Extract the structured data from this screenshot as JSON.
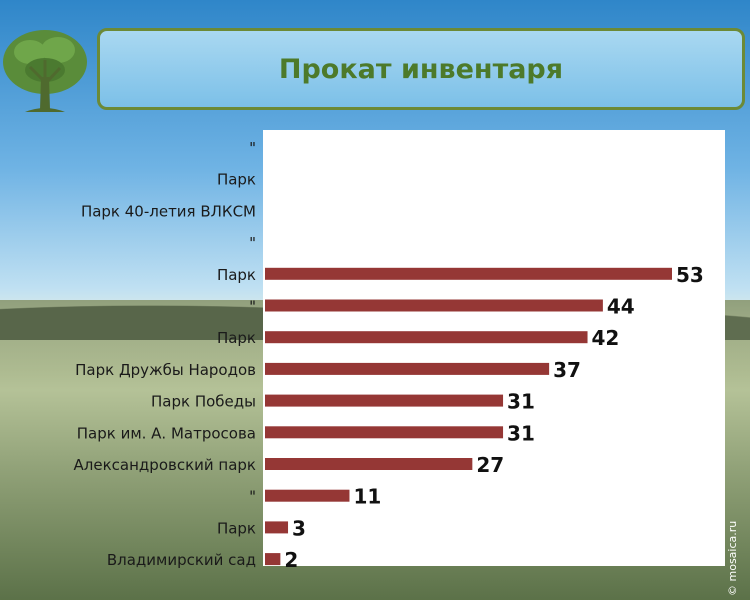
{
  "title": "Прокат инвентаря",
  "watermark": "© mosaica.ru",
  "colors": {
    "bar": "#953735",
    "title_text": "#4d7a2a",
    "title_border": "#6c8a37"
  },
  "chart_data": {
    "type": "bar",
    "orientation": "horizontal",
    "categories": [
      "\"",
      "Парк",
      "Парк 40-летия ВЛКСМ",
      "\"",
      "Парк",
      "\"",
      "Парк",
      "Парк Дружбы Народов",
      "Парк Победы",
      "Парк им. А. Матросова",
      "Александровский парк",
      "\"",
      "Парк",
      "Владимирский сад"
    ],
    "values": [
      0,
      0,
      0,
      0,
      53,
      44,
      42,
      37,
      31,
      31,
      27,
      11,
      3,
      2
    ],
    "data_labels": [
      "",
      "",
      "",
      "",
      "53",
      "44",
      "42",
      "37",
      "31",
      "31",
      "27",
      "11",
      "3",
      "2"
    ],
    "xlim": [
      0,
      60
    ],
    "grid": false,
    "legend": "none"
  }
}
